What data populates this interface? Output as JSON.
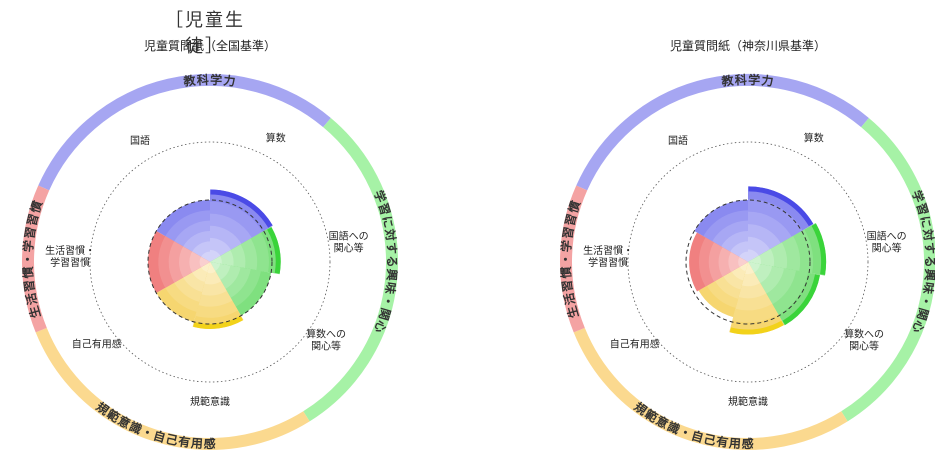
{
  "header": {
    "title": "［児童生徒］"
  },
  "chart_data": [
    {
      "type": "polar-area",
      "title": "児童質問紙（全国基準）",
      "categories": [
        "国語",
        "算数",
        "国語への関心等",
        "算数への関心等",
        "規範意識",
        "自己有用感",
        "生活習慣・学習習慣"
      ],
      "category_labels": [
        "国語",
        "算数",
        "国語への\n関心等",
        "算数への\n関心等",
        "規範意識",
        "自己有用感",
        "生活習慣・\n学習習慣"
      ],
      "values": [
        1.0,
        1.17,
        1.14,
        1.0,
        1.08,
        1.0,
        1.0
      ],
      "reference_value": 1.0,
      "groups": [
        {
          "label": "教科学力",
          "color": "#a6a6f2",
          "categories": [
            "国語",
            "算数"
          ]
        },
        {
          "label": "学習に対する興味・関心",
          "color": "#a6f2a6",
          "categories": [
            "国語への関心等",
            "算数への関心等"
          ]
        },
        {
          "label": "規範意識・自己有用感",
          "color": "#fbd98f",
          "categories": [
            "規範意識",
            "自己有用感"
          ]
        },
        {
          "label": "生活習慣・学習習慣",
          "color": "#f4a3a3",
          "categories": [
            "生活習慣・学習習慣"
          ]
        }
      ]
    },
    {
      "type": "polar-area",
      "title": "児童質問紙（神奈川県基準）",
      "categories": [
        "国語",
        "算数",
        "国語への関心等",
        "算数への関心等",
        "規範意識",
        "自己有用感",
        "生活習慣・学習習慣"
      ],
      "category_labels": [
        "国語",
        "算数",
        "国語への\n関心等",
        "算数への\n関心等",
        "規範意識",
        "自己有用感",
        "生活習慣・\n学習習慣"
      ],
      "values": [
        1.0,
        1.22,
        1.26,
        1.18,
        1.17,
        0.92,
        0.95
      ],
      "reference_value": 1.0,
      "groups": [
        {
          "label": "教科学力",
          "color": "#a6a6f2",
          "categories": [
            "国語",
            "算数"
          ]
        },
        {
          "label": "学習に対する興味・関心",
          "color": "#a6f2a6",
          "categories": [
            "国語への関心等",
            "算数への関心等"
          ]
        },
        {
          "label": "規範意識・自己有用感",
          "color": "#fbd98f",
          "categories": [
            "規範意識",
            "自己有用感"
          ]
        },
        {
          "label": "生活習慣・学習習慣",
          "color": "#f4a3a3",
          "categories": [
            "生活習慣・学習習慣"
          ]
        }
      ]
    }
  ],
  "colors": {
    "blue": "#4a4ae6",
    "green": "#3ad43a",
    "yellow": "#f2d21a",
    "red": "#ec4a4a"
  }
}
